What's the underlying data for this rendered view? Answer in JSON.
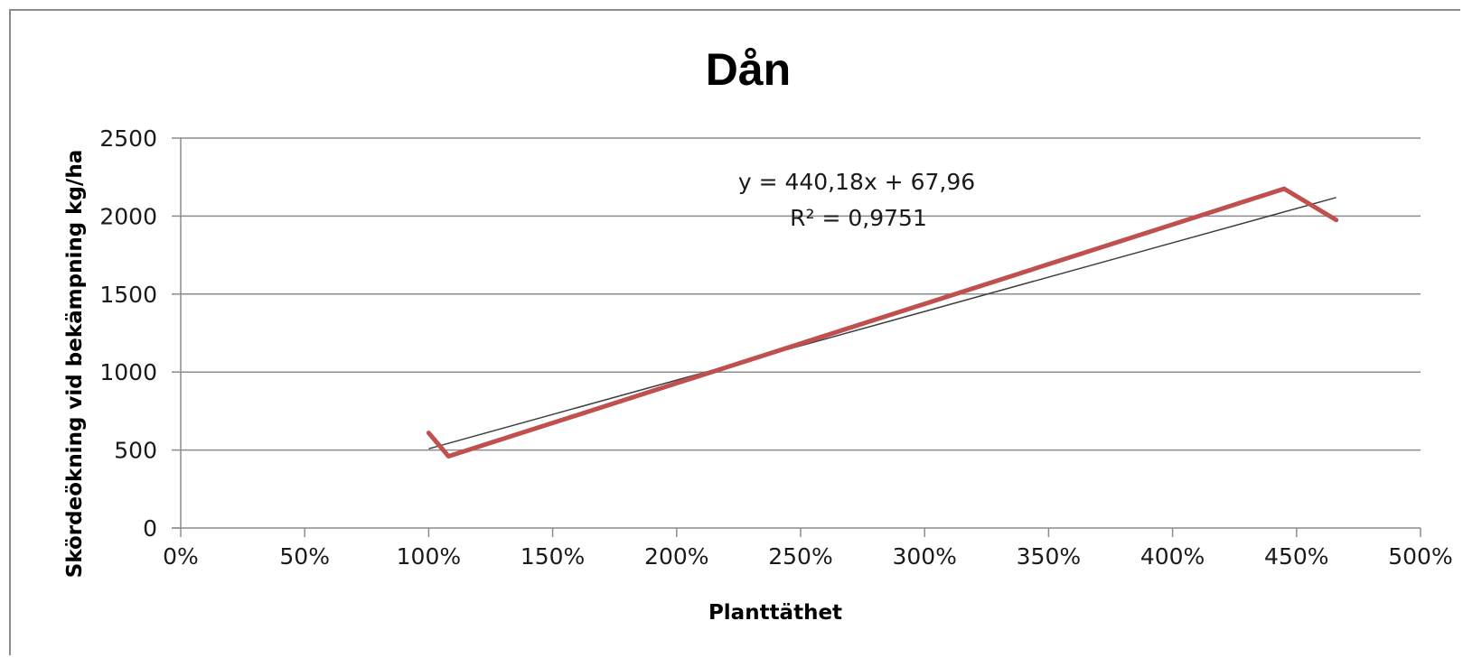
{
  "chart_data": {
    "type": "line",
    "title": "Dån",
    "xlabel": "Planttäthet",
    "ylabel": "Skördeökning vid bekämpning kg/ha",
    "xlim": [
      0,
      5
    ],
    "ylim": [
      0,
      2500
    ],
    "x_ticks": [
      0,
      0.5,
      1,
      1.5,
      2,
      2.5,
      3,
      3.5,
      4,
      4.5,
      5
    ],
    "x_tick_labels": [
      "0%",
      "50%",
      "100%",
      "150%",
      "200%",
      "250%",
      "300%",
      "350%",
      "400%",
      "450%",
      "500%"
    ],
    "y_ticks": [
      0,
      500,
      1000,
      1500,
      2000,
      2500
    ],
    "y_tick_labels": [
      "0",
      "500",
      "1000",
      "1500",
      "2000",
      "2500"
    ],
    "grid": "horizontal",
    "legend": "none",
    "series": [
      {
        "color": "#c0504d",
        "x": [
          1.0,
          1.08,
          4.45,
          4.66
        ],
        "y": [
          610,
          460,
          2175,
          1975
        ]
      }
    ],
    "trendline": {
      "type": "linear",
      "slope": 440.18,
      "intercept": 67.96,
      "x_range": [
        1.0,
        4.66
      ],
      "color": "#3f3f3f"
    },
    "annotations": {
      "equation": "y = 440,18x + 67,96",
      "r_squared": "R² = 0,9751"
    }
  }
}
